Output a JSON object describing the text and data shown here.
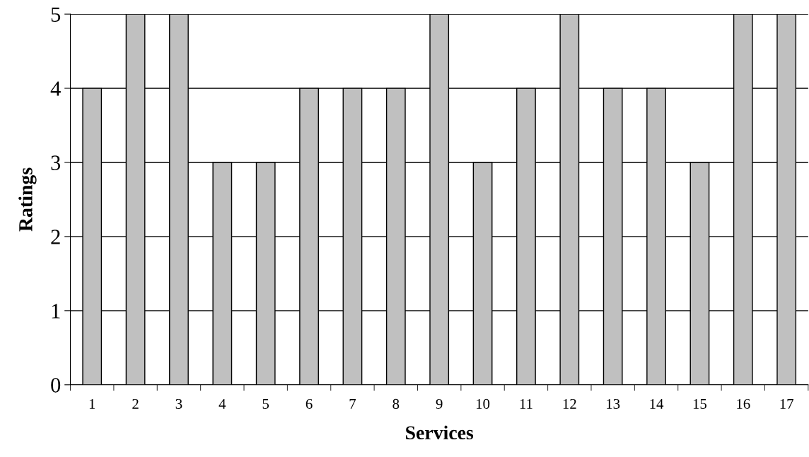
{
  "chart_data": {
    "type": "bar",
    "xlabel": "Services",
    "ylabel": "Ratings",
    "categories": [
      "1",
      "2",
      "3",
      "4",
      "5",
      "6",
      "7",
      "8",
      "9",
      "10",
      "11",
      "12",
      "13",
      "14",
      "15",
      "16",
      "17"
    ],
    "values": [
      4,
      5,
      5,
      3,
      3,
      4,
      4,
      4,
      5,
      3,
      4,
      5,
      4,
      4,
      3,
      5,
      5
    ],
    "color": "#c0c0c0",
    "ylim": [
      0,
      5
    ],
    "yticks": [
      0,
      1,
      2,
      3,
      4,
      5
    ],
    "grid": "y"
  }
}
